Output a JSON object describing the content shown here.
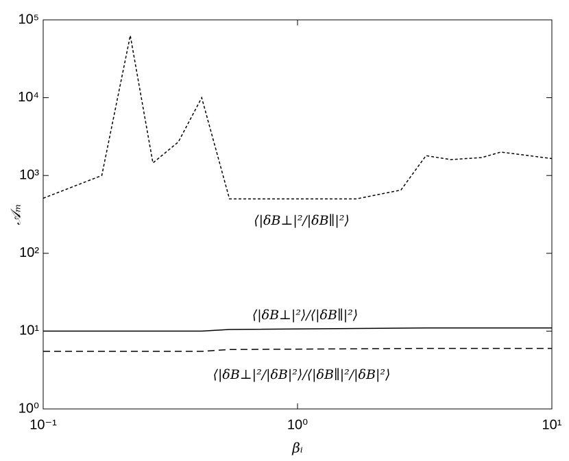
{
  "chart_data": {
    "type": "line",
    "x_label": "βᵢ",
    "y_label": "𝒜ₘ",
    "xscale": "log",
    "yscale": "log",
    "xlim": [
      0.1,
      10
    ],
    "ylim": [
      1,
      100000
    ],
    "xticks": [
      {
        "value": 0.1,
        "label": "10⁻¹"
      },
      {
        "value": 1,
        "label": "10⁰"
      },
      {
        "value": 10,
        "label": "10¹"
      }
    ],
    "yticks": [
      {
        "value": 1,
        "label": "10⁰"
      },
      {
        "value": 10,
        "label": "10¹"
      },
      {
        "value": 100,
        "label": "10²"
      },
      {
        "value": 1000,
        "label": "10³"
      },
      {
        "value": 10000,
        "label": "10⁴"
      },
      {
        "value": 100000,
        "label": "10⁵"
      }
    ],
    "series": [
      {
        "name": "⟨|δB⊥|²/|δB∥|²⟩",
        "color": "#000",
        "dash": "dotted",
        "x": [
          0.1,
          0.17,
          0.22,
          0.27,
          0.34,
          0.42,
          0.54,
          1.7,
          2.55,
          3.2,
          4.0,
          5.3,
          6.3,
          10
        ],
        "values": [
          510,
          1000,
          63000,
          1450,
          2700,
          10000,
          500,
          500,
          650,
          1800,
          1600,
          1700,
          2000,
          1650
        ]
      },
      {
        "name": "⟨|δB⊥|²⟩/⟨|δB∥|²⟩",
        "color": "#000",
        "dash": "solid",
        "x": [
          0.1,
          0.42,
          0.54,
          3.2,
          10
        ],
        "values": [
          10,
          10,
          10.5,
          11,
          11
        ]
      },
      {
        "name": "⟨|δB⊥|²/|δB|²⟩/⟨|δB∥|²/|δB|²⟩",
        "color": "#000",
        "dash": "dashed",
        "x": [
          0.1,
          0.42,
          0.54,
          3.2,
          10
        ],
        "values": [
          5.5,
          5.5,
          5.8,
          6,
          6
        ]
      }
    ]
  }
}
